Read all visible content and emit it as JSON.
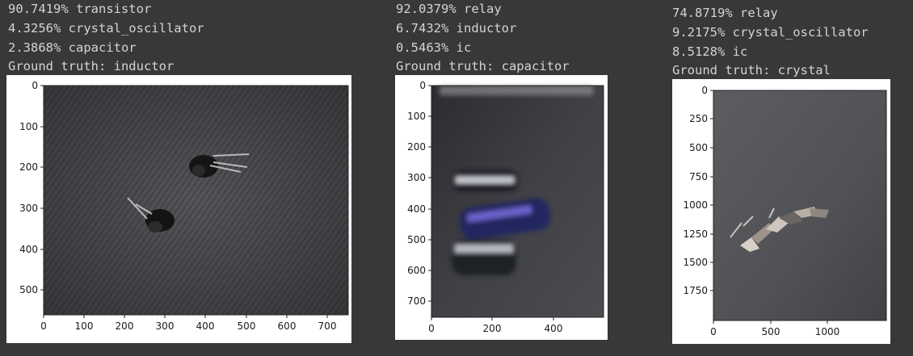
{
  "cells": [
    {
      "predictions": [
        "90.7419% transistor",
        "4.3256% crystal_oscillator",
        "2.3868% capacitor"
      ],
      "ground_truth": "Ground truth: inductor",
      "y_ticks": [
        "0",
        "100",
        "200",
        "300",
        "400",
        "500"
      ],
      "x_ticks": [
        "0",
        "100",
        "200",
        "300",
        "400",
        "500",
        "600",
        "700"
      ],
      "image_tone": "#4a4a4e"
    },
    {
      "predictions": [
        "92.0379% relay",
        "6.7432% inductor",
        "0.5463% ic"
      ],
      "ground_truth": "Ground truth: capacitor",
      "y_ticks": [
        "0",
        "100",
        "200",
        "300",
        "400",
        "500",
        "600",
        "700"
      ],
      "x_ticks": [
        "0",
        "200",
        "400"
      ],
      "image_tone": "#3e3e42"
    },
    {
      "predictions": [
        "74.8719% relay",
        "9.2175% crystal_oscillator",
        "8.5128% ic"
      ],
      "ground_truth": "Ground truth: crystal",
      "y_ticks": [
        "0",
        "250",
        "500",
        "750",
        "1000",
        "1250",
        "1500",
        "1750"
      ],
      "x_ticks": [
        "0",
        "500",
        "1000"
      ],
      "image_tone": "#55565a"
    }
  ]
}
